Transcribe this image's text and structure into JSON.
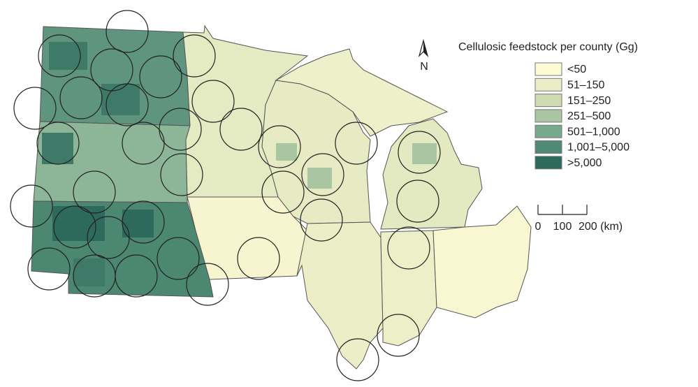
{
  "legend": {
    "title": "Cellulosic feedstock per county (Gg)",
    "items": [
      {
        "label": "<50",
        "color": "#fdfbd3"
      },
      {
        "label": "51–150",
        "color": "#e9eec7"
      },
      {
        "label": "151–250",
        "color": "#cfdab2"
      },
      {
        "label": "251–500",
        "color": "#a9c5a2"
      },
      {
        "label": "501–1,000",
        "color": "#79a98c"
      },
      {
        "label": "1,001–5,000",
        "color": "#4f8a74"
      },
      {
        "label": ">5,000",
        "color": "#2d6a5d"
      }
    ]
  },
  "north_label": "N",
  "scale_bar": {
    "labels": [
      "0",
      "100",
      "200 (km)"
    ]
  }
}
